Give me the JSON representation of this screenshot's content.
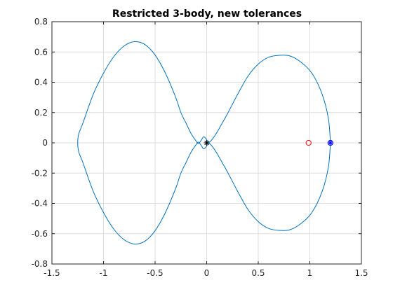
{
  "chart_data": {
    "type": "line",
    "title": "Restricted 3-body, new tolerances",
    "xlabel": "",
    "ylabel": "",
    "xlim": [
      -1.5,
      1.5
    ],
    "ylim": [
      -0.8,
      0.8
    ],
    "xticks": [
      -1.5,
      -1,
      -0.5,
      0,
      0.5,
      1,
      1.5
    ],
    "xtick_labels": [
      "-1.5",
      "-1",
      "-0.5",
      "0",
      "0.5",
      "1",
      "1.5"
    ],
    "yticks": [
      -0.8,
      -0.6,
      -0.4,
      -0.2,
      0,
      0.2,
      0.4,
      0.6,
      0.8
    ],
    "ytick_labels": [
      "-0.8",
      "-0.6",
      "-0.4",
      "-0.2",
      "0",
      "0.2",
      "0.4",
      "0.6",
      "0.8"
    ],
    "grid": true,
    "box": true,
    "series": [
      {
        "color": "#0072BD",
        "x": [
          1.2,
          1.18,
          1.12,
          1.02,
          0.9,
          0.8,
          0.7,
          0.6,
          0.5,
          0.4,
          0.3,
          0.2,
          0.15,
          0.1,
          0.05,
          0.02,
          -0.01,
          -0.03,
          -0.05,
          -0.08,
          -0.1,
          -0.15,
          -0.2,
          -0.25,
          -0.3,
          -0.4,
          -0.5,
          -0.6,
          -0.7,
          -0.8,
          -0.9,
          -1.0,
          -1.1,
          -1.2,
          -1.24,
          -1.25,
          -1.24,
          -1.2,
          -1.1,
          -1.0,
          -0.9,
          -0.8,
          -0.7,
          -0.6,
          -0.5,
          -0.4,
          -0.3,
          -0.25,
          -0.2,
          -0.15,
          -0.1,
          -0.08,
          -0.05,
          -0.03,
          -0.01,
          0.02,
          0.05,
          0.1,
          0.15,
          0.2,
          0.3,
          0.4,
          0.5,
          0.6,
          0.7,
          0.8,
          0.9,
          1.02,
          1.12,
          1.18,
          1.2
        ],
        "y": [
          0,
          0.16,
          0.32,
          0.46,
          0.54,
          0.575,
          0.578,
          0.565,
          0.52,
          0.44,
          0.32,
          0.19,
          0.13,
          0.07,
          0.02,
          0.005,
          0.03,
          0.04,
          0.02,
          -0.005,
          0.01,
          0.06,
          0.13,
          0.2,
          0.3,
          0.46,
          0.58,
          0.65,
          0.668,
          0.64,
          0.57,
          0.46,
          0.32,
          0.13,
          0.06,
          0,
          -0.06,
          -0.13,
          -0.32,
          -0.46,
          -0.57,
          -0.64,
          -0.668,
          -0.65,
          -0.58,
          -0.46,
          -0.3,
          -0.2,
          -0.13,
          -0.06,
          -0.01,
          0.005,
          -0.02,
          -0.04,
          -0.03,
          -0.005,
          -0.02,
          -0.07,
          -0.13,
          -0.19,
          -0.32,
          -0.44,
          -0.52,
          -0.565,
          -0.578,
          -0.575,
          -0.54,
          -0.46,
          -0.32,
          -0.16,
          0
        ]
      }
    ],
    "markers": [
      {
        "x": 0,
        "y": 0,
        "symbol": "asterisk",
        "color": "#000000"
      },
      {
        "x": 0.988,
        "y": 0,
        "symbol": "circle",
        "color": "#ff0000"
      },
      {
        "x": 1.2,
        "y": 0,
        "symbol": "circle",
        "color": "#0000ff"
      },
      {
        "x": 1.2,
        "y": 0,
        "symbol": "asterisk",
        "color": "#0000ff"
      }
    ]
  }
}
